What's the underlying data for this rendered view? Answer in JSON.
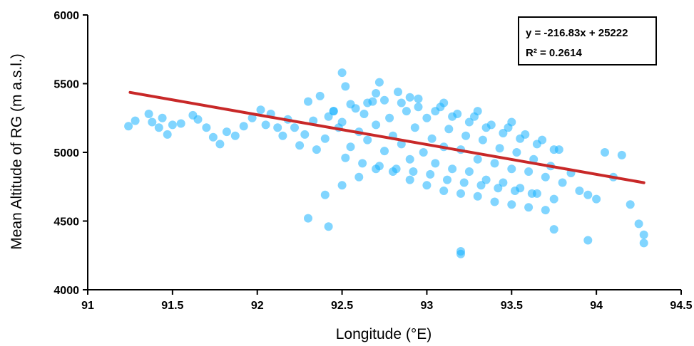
{
  "chart_data": {
    "type": "scatter",
    "title": "",
    "xlabel": "Longitude (°E)",
    "ylabel": "Mean Altitude of RG (m a.s.l.)",
    "xlim": [
      91,
      94.5
    ],
    "ylim": [
      4000,
      6000
    ],
    "xticks": [
      "91",
      "91.5",
      "92",
      "92.5",
      "93",
      "93.5",
      "94",
      "94.5"
    ],
    "yticks": [
      "4000",
      "4500",
      "5000",
      "5500",
      "6000"
    ],
    "grid": false,
    "legend": "none",
    "annotation": {
      "equation": "y = -216.83x + 25222",
      "r_squared": "R² = 0.2614",
      "position": "top-right"
    },
    "trendline": {
      "slope": -216.83,
      "intercept": 25222,
      "x_range": [
        91.25,
        94.28
      ]
    },
    "series": [
      {
        "color": "#1ab2ff",
        "x": [
          91.24,
          91.28,
          91.36,
          91.38,
          91.42,
          91.44,
          91.47,
          91.5,
          91.55,
          91.62,
          91.65,
          91.7,
          91.74,
          91.78,
          91.82,
          91.87,
          91.92,
          91.97,
          92.02,
          92.05,
          92.08,
          92.12,
          92.15,
          92.18,
          92.22,
          92.25,
          92.28,
          92.3,
          92.33,
          92.35,
          92.37,
          92.4,
          92.42,
          92.45,
          92.48,
          92.5,
          92.52,
          92.55,
          92.58,
          92.6,
          92.63,
          92.65,
          92.68,
          92.7,
          92.72,
          92.75,
          92.78,
          92.8,
          92.83,
          92.85,
          92.88,
          92.9,
          92.93,
          92.95,
          92.98,
          93.0,
          93.03,
          93.05,
          93.08,
          93.1,
          93.13,
          93.15,
          93.18,
          93.2,
          93.23,
          93.25,
          93.28,
          93.3,
          93.33,
          93.35,
          93.38,
          93.4,
          93.43,
          93.45,
          93.48,
          93.5,
          93.53,
          93.55,
          93.58,
          93.6,
          93.63,
          93.65,
          93.68,
          93.7,
          93.73,
          93.75,
          93.78,
          93.8,
          93.85,
          93.9,
          93.95,
          94.0,
          94.05,
          94.1,
          94.15,
          94.2,
          94.25,
          94.28,
          92.4,
          92.5,
          92.6,
          92.7,
          92.8,
          92.9,
          93.0,
          93.1,
          93.2,
          93.3,
          93.4,
          93.5,
          93.6,
          93.7,
          92.45,
          92.55,
          92.65,
          92.75,
          92.85,
          92.95,
          93.05,
          93.15,
          93.25,
          93.35,
          93.45,
          93.55,
          93.65,
          93.75,
          92.52,
          92.62,
          92.72,
          92.82,
          92.92,
          93.02,
          93.12,
          93.22,
          93.32,
          93.42,
          93.52,
          93.62,
          92.5,
          92.7,
          92.9,
          93.1,
          93.3,
          93.5,
          92.3,
          92.42,
          93.2,
          93.2,
          93.75,
          93.95,
          94.28
        ],
        "y": [
          5190,
          5230,
          5280,
          5220,
          5180,
          5250,
          5130,
          5200,
          5210,
          5270,
          5240,
          5180,
          5110,
          5060,
          5150,
          5120,
          5190,
          5250,
          5310,
          5200,
          5280,
          5180,
          5120,
          5240,
          5180,
          5050,
          5130,
          5370,
          5230,
          5020,
          5410,
          5100,
          5260,
          5300,
          5180,
          5220,
          5480,
          5040,
          5320,
          5150,
          5280,
          5090,
          5370,
          5200,
          5510,
          5010,
          5250,
          5120,
          5440,
          5060,
          5300,
          4950,
          5180,
          5390,
          5000,
          5250,
          5100,
          4920,
          5330,
          5040,
          5170,
          4880,
          5280,
          5020,
          5120,
          4860,
          5260,
          4950,
          5090,
          4800,
          5200,
          4920,
          5030,
          4780,
          5180,
          4880,
          5000,
          4740,
          5130,
          4860,
          4950,
          4700,
          5090,
          4820,
          4900,
          4660,
          5020,
          4780,
          4850,
          4720,
          4690,
          4660,
          5000,
          4820,
          4980,
          4620,
          4480,
          4400,
          4690,
          4760,
          4820,
          4880,
          4860,
          4800,
          4760,
          4720,
          4700,
          4680,
          4640,
          4620,
          4600,
          4580,
          5300,
          5350,
          5360,
          5380,
          5360,
          5330,
          5300,
          5260,
          5220,
          5180,
          5140,
          5100,
          5060,
          5020,
          4960,
          4920,
          4900,
          4880,
          4860,
          4840,
          4800,
          4780,
          4760,
          4740,
          4720,
          4700,
          5580,
          5430,
          5400,
          5360,
          5300,
          5220,
          4520,
          4460,
          4280,
          4260,
          4440,
          4360,
          4340
        ]
      }
    ]
  }
}
